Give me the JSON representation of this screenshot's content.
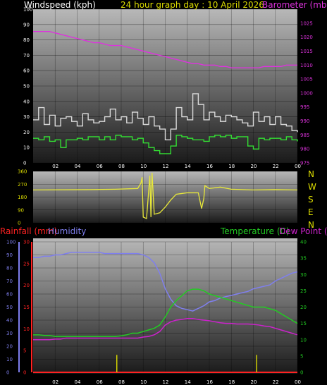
{
  "header": {
    "left": "Windspeed (kph)",
    "center": "24 hour graph day : 10 April 2026",
    "right": "Barometer (mb)"
  },
  "colors": {
    "windspeed": "#d9d9d9",
    "wind_avg": "#33dd33",
    "barometer": "#dd33dd",
    "direction": "#e8e83a",
    "humidity": "#7f7fee",
    "temperature": "#22cc22",
    "dewpoint": "#cc22cc",
    "rainfall": "#ff2222",
    "header_text": "#dddd00"
  },
  "chart_data": [
    {
      "type": "line",
      "name": "wind-barometer",
      "x": [
        0,
        0.5,
        1,
        1.5,
        2,
        2.5,
        3,
        3.5,
        4,
        4.5,
        5,
        5.5,
        6,
        6.5,
        7,
        7.5,
        8,
        8.5,
        9,
        9.5,
        10,
        10.5,
        11,
        11.5,
        12,
        12.5,
        13,
        13.5,
        14,
        14.5,
        15,
        15.5,
        16,
        16.5,
        17,
        17.5,
        18,
        18.5,
        19,
        19.5,
        20,
        20.5,
        21,
        21.5,
        22,
        22.5,
        23,
        23.5,
        24
      ],
      "xticks": [
        "02",
        "04",
        "06",
        "08",
        "10",
        "12",
        "14",
        "16",
        "18",
        "20",
        "22",
        "00"
      ],
      "xtick_hours": [
        2,
        4,
        6,
        8,
        10,
        12,
        14,
        16,
        18,
        20,
        22,
        24
      ],
      "ylim_left": [
        0,
        100
      ],
      "yticks_left": [
        0,
        10,
        20,
        30,
        40,
        50,
        60,
        70,
        80,
        90,
        100
      ],
      "ylim_right": [
        975,
        1030
      ],
      "yticks_right": [
        975,
        980,
        985,
        990,
        995,
        1000,
        1005,
        1010,
        1015,
        1020,
        1025
      ],
      "series": [
        {
          "key": "windspeed",
          "axis": "left",
          "step": true,
          "values": [
            28,
            36,
            25,
            31,
            24,
            29,
            30,
            27,
            24,
            32,
            28,
            26,
            27,
            30,
            35,
            28,
            30,
            26,
            33,
            29,
            25,
            30,
            24,
            22,
            15,
            22,
            36,
            30,
            28,
            45,
            38,
            28,
            33,
            30,
            27,
            31,
            30,
            28,
            26,
            24,
            33,
            27,
            30,
            25,
            30,
            25,
            24,
            21,
            20
          ]
        },
        {
          "key": "wind_avg",
          "axis": "left",
          "step": true,
          "values": [
            16,
            15,
            17,
            14,
            15,
            10,
            15,
            15,
            16,
            15,
            17,
            17,
            15,
            17,
            15,
            18,
            17,
            17,
            15,
            16,
            13,
            10,
            8,
            6,
            6,
            11,
            18,
            17,
            16,
            15,
            15,
            14,
            17,
            18,
            17,
            18,
            16,
            17,
            17,
            11,
            9,
            16,
            15,
            16,
            16,
            15,
            17,
            15,
            14
          ]
        },
        {
          "key": "barometer",
          "axis": "right",
          "step": false,
          "values": [
            1022,
            1022,
            1022,
            1022,
            1021.5,
            1021,
            1020.5,
            1020,
            1019.5,
            1019,
            1018.5,
            1018,
            1018,
            1017.5,
            1017,
            1017,
            1017,
            1016.5,
            1016,
            1015.5,
            1015,
            1014.5,
            1014,
            1013.5,
            1013,
            1012.5,
            1012,
            1011.5,
            1011,
            1010.5,
            1010.5,
            1010,
            1010,
            1010,
            1009.5,
            1009.5,
            1009,
            1009,
            1009,
            1009,
            1009,
            1009,
            1009.5,
            1009.5,
            1009.5,
            1009.5,
            1010,
            1010,
            1010
          ]
        }
      ]
    },
    {
      "type": "line",
      "name": "wind-direction",
      "ylim": [
        0,
        360
      ],
      "yticks": [
        0,
        90,
        180,
        270,
        360
      ],
      "directions": [
        "N",
        "W",
        "S",
        "E",
        "N"
      ],
      "points": [
        [
          0,
          230
        ],
        [
          5,
          232
        ],
        [
          7.5,
          235
        ],
        [
          9.5,
          240
        ],
        [
          9.8,
          280
        ],
        [
          9.9,
          320
        ],
        [
          10,
          40
        ],
        [
          10.3,
          30
        ],
        [
          10.6,
          330
        ],
        [
          10.7,
          40
        ],
        [
          10.8,
          350
        ],
        [
          11,
          60
        ],
        [
          11.5,
          70
        ],
        [
          12,
          110
        ],
        [
          12.5,
          160
        ],
        [
          13,
          200
        ],
        [
          13.5,
          205
        ],
        [
          14,
          210
        ],
        [
          15,
          210
        ],
        [
          15.3,
          100
        ],
        [
          15.5,
          170
        ],
        [
          15.6,
          260
        ],
        [
          16,
          240
        ],
        [
          17,
          250
        ],
        [
          18,
          235
        ],
        [
          20,
          230
        ],
        [
          22,
          232
        ],
        [
          24,
          230
        ]
      ]
    },
    {
      "type": "line",
      "name": "temperature-humidity-rain",
      "x": [
        0,
        0.5,
        1,
        1.5,
        2,
        2.5,
        3,
        3.5,
        4,
        4.5,
        5,
        5.5,
        6,
        6.5,
        7,
        7.5,
        8,
        8.5,
        9,
        9.5,
        10,
        10.5,
        11,
        11.5,
        12,
        12.5,
        13,
        13.5,
        14,
        14.5,
        15,
        15.5,
        16,
        16.5,
        17,
        17.5,
        18,
        18.5,
        19,
        19.5,
        20,
        20.5,
        21,
        21.5,
        22,
        22.5,
        23,
        23.5,
        24
      ],
      "xticks": [
        "02",
        "04",
        "06",
        "08",
        "10",
        "12",
        "14",
        "16",
        "18",
        "20",
        "22",
        "00"
      ],
      "xtick_hours": [
        2,
        4,
        6,
        8,
        10,
        12,
        14,
        16,
        18,
        20,
        22,
        24
      ],
      "humidity_ylim": [
        0,
        100
      ],
      "humidity_yticks": [
        0,
        10,
        20,
        30,
        40,
        50,
        60,
        70,
        80,
        90,
        100
      ],
      "rain_ylim": [
        0,
        30
      ],
      "rain_yticks": [
        0,
        5,
        10,
        15,
        20,
        25,
        30
      ],
      "temp_ylim": [
        0,
        40
      ],
      "temp_yticks": [
        0,
        5,
        10,
        15,
        20,
        25,
        30,
        35,
        40
      ],
      "series": [
        {
          "key": "humidity",
          "axis": "humidity",
          "values": [
            88,
            88,
            89,
            89,
            90,
            90,
            91,
            92,
            92,
            92,
            92,
            92,
            92,
            91,
            91,
            91,
            91,
            91,
            91,
            91,
            90,
            88,
            84,
            76,
            64,
            56,
            51,
            49,
            48,
            47,
            49,
            51,
            54,
            55,
            57,
            58,
            59,
            60,
            61,
            62,
            64,
            65,
            66,
            67,
            70,
            72,
            74,
            76,
            77
          ]
        },
        {
          "key": "temperature",
          "axis": "temp",
          "values": [
            11.5,
            11.5,
            11.3,
            11.3,
            11,
            11,
            11,
            11,
            11,
            11,
            11,
            11,
            11,
            11,
            11,
            11,
            11.2,
            11.5,
            12,
            12,
            12.5,
            13,
            13.5,
            14.5,
            17,
            20,
            22,
            23.5,
            25,
            25.5,
            25.5,
            25,
            24,
            23.5,
            23,
            22.5,
            22,
            21.5,
            21,
            20.5,
            20,
            20,
            20,
            19.5,
            19,
            18,
            17,
            16,
            15
          ]
        },
        {
          "key": "dewpoint",
          "axis": "temp",
          "values": [
            10,
            10,
            10,
            10,
            10.2,
            10.2,
            10.5,
            10.5,
            10.5,
            10.5,
            10.5,
            10.5,
            10.5,
            10.5,
            10.5,
            10.5,
            10.5,
            10.5,
            10.5,
            10.5,
            10.8,
            11,
            11.5,
            12.5,
            14.5,
            15.5,
            16,
            16.2,
            16.5,
            16.5,
            16.2,
            16,
            15.8,
            15.5,
            15.2,
            15,
            15,
            14.8,
            14.8,
            14.8,
            14.7,
            14.5,
            14.2,
            14,
            13.5,
            13,
            12.5,
            12,
            11.5
          ]
        },
        {
          "key": "rainfall",
          "axis": "rain",
          "values": [
            0,
            0,
            0,
            0,
            0,
            0,
            0,
            0,
            0,
            0,
            0,
            0,
            0,
            0,
            0,
            0,
            0,
            0,
            0,
            0,
            0,
            0,
            0,
            0,
            0,
            0,
            0,
            0,
            0,
            0,
            0,
            0,
            0,
            0,
            0,
            0,
            0,
            0,
            0,
            0,
            0,
            0,
            0,
            0,
            0,
            0,
            0,
            0,
            0
          ]
        }
      ],
      "rain_rate_spikes": [
        [
          7.6,
          4
        ],
        [
          20.3,
          4
        ]
      ]
    }
  ],
  "bottom_header": {
    "rainfall": "Rainfall (mm)",
    "humidity": "Humidity",
    "temperature": "Temperature (C)",
    "dewpoint": "Dew Point (C)"
  }
}
